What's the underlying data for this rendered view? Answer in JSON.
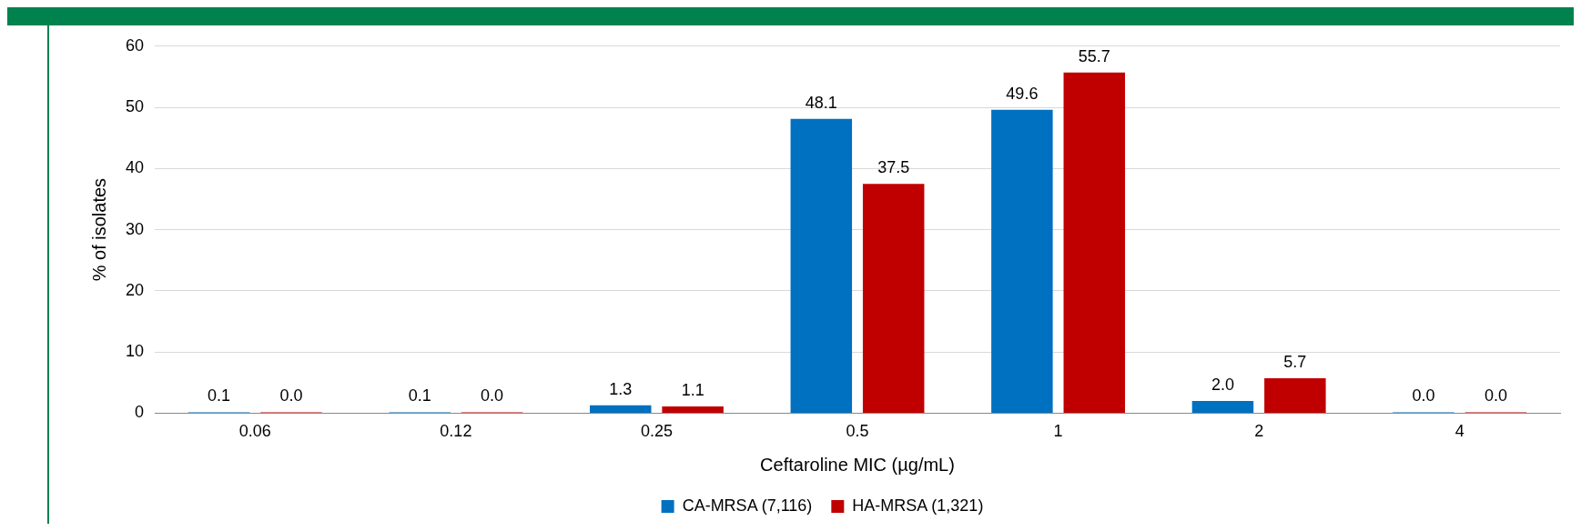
{
  "chart_data": {
    "type": "bar",
    "xlabel": "Ceftaroline MIC (µg/mL)",
    "ylabel": "% of isolates",
    "categories": [
      "0.06",
      "0.12",
      "0.25",
      "0.5",
      "1",
      "2",
      "4"
    ],
    "series": [
      {
        "name": "CA-MRSA (7,116)",
        "color": "#0070c0",
        "values": [
          0.1,
          0.1,
          1.3,
          48.1,
          49.6,
          2.0,
          0.0
        ],
        "value_labels": [
          "0.1",
          "0.1",
          "1.3",
          "48.1",
          "49.6",
          "2.0",
          "0.0"
        ]
      },
      {
        "name": "HA-MRSA (1,321)",
        "color": "#c00000",
        "values": [
          0.0,
          0.0,
          1.1,
          37.5,
          55.7,
          5.7,
          0.0
        ],
        "value_labels": [
          "0.0",
          "0.0",
          "1.1",
          "37.5",
          "55.7",
          "5.7",
          "0.0"
        ]
      }
    ],
    "ylim": [
      0,
      60
    ],
    "yticks": [
      0,
      10,
      20,
      30,
      40,
      50,
      60
    ],
    "grid": "y",
    "legend": "bottom"
  }
}
